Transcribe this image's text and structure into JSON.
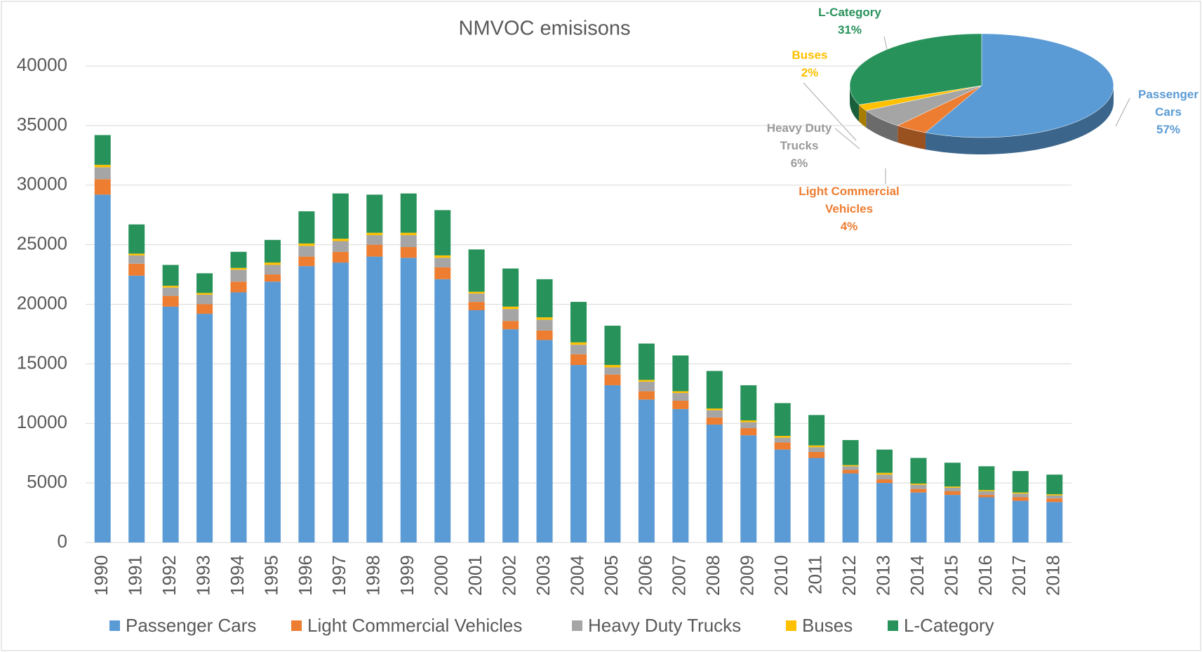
{
  "chart_data": [
    {
      "type": "stacked_bar",
      "title": "NMVOC emisisons",
      "categories": [
        "1990",
        "1991",
        "1992",
        "1993",
        "1994",
        "1995",
        "1996",
        "1997",
        "1998",
        "1999",
        "2000",
        "2001",
        "2002",
        "2003",
        "2004",
        "2005",
        "2006",
        "2007",
        "2008",
        "2009",
        "2010",
        "2011",
        "2012",
        "2013",
        "2014",
        "2015",
        "2016",
        "2017",
        "2018"
      ],
      "series": [
        {
          "name": "Passenger Cars",
          "color": "#5b9bd5",
          "values": [
            29200,
            22400,
            19800,
            19200,
            21000,
            21900,
            23200,
            23500,
            24000,
            23900,
            22100,
            19500,
            17900,
            17000,
            14900,
            13200,
            12000,
            11200,
            9900,
            9000,
            7800,
            7100,
            5800,
            5000,
            4200,
            4000,
            3800,
            3500,
            3400
          ]
        },
        {
          "name": "Light Commercial Vehicles",
          "color": "#ed7d31",
          "values": [
            1300,
            1000,
            900,
            800,
            900,
            600,
            800,
            900,
            1000,
            900,
            1000,
            700,
            700,
            800,
            900,
            900,
            700,
            700,
            600,
            600,
            600,
            500,
            300,
            300,
            300,
            300,
            200,
            300,
            300
          ]
        },
        {
          "name": "Heavy Duty Trucks",
          "color": "#a5a5a5",
          "values": [
            1000,
            700,
            700,
            800,
            1000,
            800,
            900,
            900,
            800,
            1000,
            800,
            700,
            1000,
            900,
            800,
            600,
            800,
            650,
            600,
            500,
            400,
            400,
            300,
            400,
            350,
            300,
            300,
            300,
            250
          ]
        },
        {
          "name": "Buses",
          "color": "#ffc000",
          "values": [
            200,
            150,
            150,
            150,
            150,
            200,
            200,
            200,
            200,
            200,
            200,
            150,
            200,
            200,
            200,
            200,
            150,
            150,
            150,
            150,
            150,
            150,
            100,
            150,
            100,
            100,
            100,
            100,
            100
          ]
        },
        {
          "name": "L-Category",
          "color": "#27925a",
          "values": [
            2500,
            2450,
            1750,
            1650,
            1350,
            1900,
            2700,
            3800,
            3200,
            3300,
            3800,
            3550,
            3200,
            3200,
            3400,
            3300,
            3050,
            3000,
            3150,
            2950,
            2750,
            2550,
            2100,
            1950,
            2150,
            2000,
            2000,
            1800,
            1650
          ]
        }
      ],
      "ylim": [
        0,
        40000
      ],
      "yticks": [
        0,
        5000,
        10000,
        15000,
        20000,
        25000,
        30000,
        35000,
        40000
      ],
      "grid": true,
      "legend": "bottom"
    },
    {
      "type": "pie",
      "categories": [
        "Passenger Cars",
        "Light Commercial Vehicles",
        "Heavy Duty Trucks",
        "Buses",
        "L-Category"
      ],
      "values": [
        57,
        4,
        6,
        2,
        31
      ],
      "value_labels": [
        "57%",
        "4%",
        "6%",
        "2%",
        "31%"
      ],
      "colors": [
        "#5b9bd5",
        "#ed7d31",
        "#a5a5a5",
        "#ffc000",
        "#27925a"
      ]
    }
  ]
}
